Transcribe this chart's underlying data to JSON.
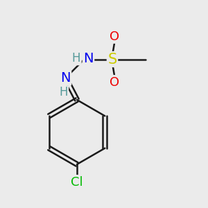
{
  "background_color": "#ebebeb",
  "bond_color": "#1a1a1a",
  "figsize": [
    3.0,
    3.0
  ],
  "dpi": 100,
  "atoms": {
    "Cl": {
      "color": "#00bb00"
    },
    "N": {
      "color": "#0000ee"
    },
    "O": {
      "color": "#ee0000"
    },
    "S": {
      "color": "#cccc00"
    },
    "H": {
      "color": "#559999"
    }
  }
}
